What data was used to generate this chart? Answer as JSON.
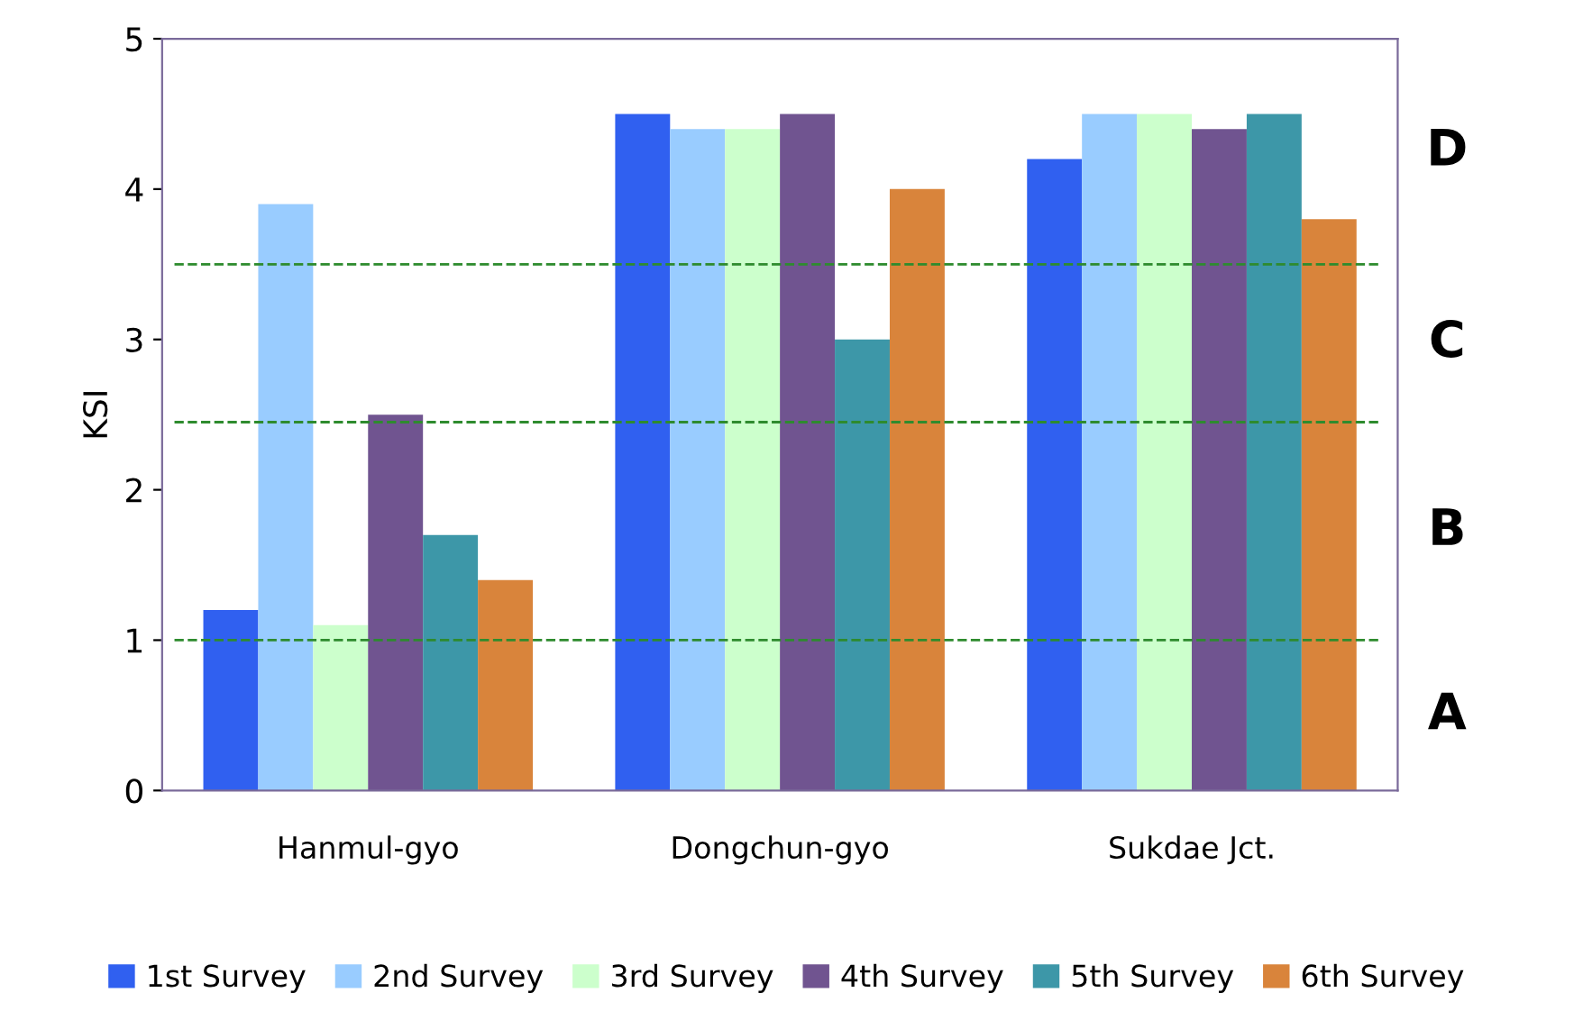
{
  "chart_data": {
    "type": "bar",
    "ylabel": "KSI",
    "categories": [
      "Hanmul-gyo",
      "Dongchun-gyo",
      "Sukdae Jct."
    ],
    "series": [
      {
        "name": "1st Survey",
        "color": "#3060f0",
        "values": [
          1.2,
          4.5,
          4.2
        ]
      },
      {
        "name": "2nd Survey",
        "color": "#99ccff",
        "values": [
          3.9,
          4.4,
          4.5
        ]
      },
      {
        "name": "3rd Survey",
        "color": "#ccffcc",
        "values": [
          1.1,
          4.4,
          4.5
        ]
      },
      {
        "name": "4th Survey",
        "color": "#705490",
        "values": [
          2.5,
          4.5,
          4.4
        ]
      },
      {
        "name": "5th Survey",
        "color": "#3d97a8",
        "values": [
          1.7,
          3.0,
          4.5
        ]
      },
      {
        "name": "6th Survey",
        "color": "#d9843b",
        "values": [
          1.4,
          4.0,
          3.8
        ]
      }
    ],
    "ylim": [
      0,
      5
    ],
    "yticks": [
      0,
      1,
      2,
      3,
      4,
      5
    ],
    "ref_lines": [
      {
        "axis": "y",
        "value": 1.0,
        "color": "#2e8b2e",
        "line_style": "dashed"
      },
      {
        "axis": "y",
        "value": 2.45,
        "color": "#2e8b2e",
        "line_style": "dashed"
      },
      {
        "axis": "y",
        "value": 3.5,
        "color": "#2e8b2e",
        "line_style": "dashed"
      }
    ],
    "annotations": [
      "A",
      "B",
      "C",
      "D"
    ],
    "grid": false,
    "legend": "bottom"
  }
}
